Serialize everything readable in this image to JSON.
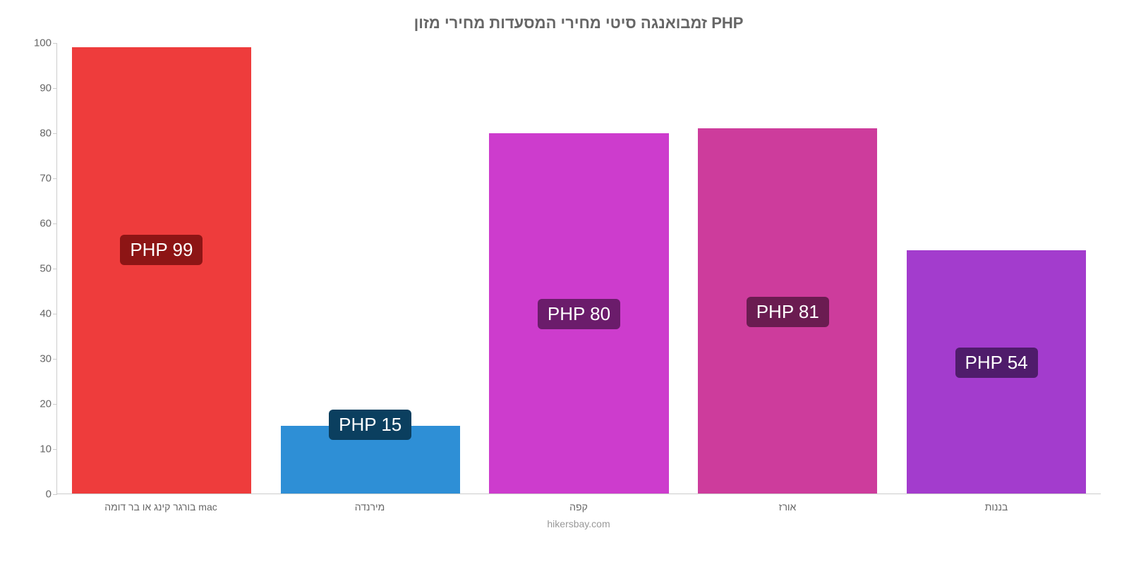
{
  "chart": {
    "type": "bar",
    "title": "זמבואנגה סיטי מחירי המסעדות מחירי מזון PHP",
    "title_color": "#666666",
    "title_fontsize": 22,
    "footer": "hikersbay.com",
    "footer_color": "#999999",
    "background_color": "#ffffff",
    "axis_color": "#cccccc",
    "label_color": "#666666",
    "label_fontsize": 15,
    "x_label_fontsize": 14,
    "ylim": [
      0,
      100
    ],
    "ytick_step": 10,
    "yticks": [
      0,
      10,
      20,
      30,
      40,
      50,
      60,
      70,
      80,
      90,
      100
    ],
    "bar_width_pct": 86,
    "badge_fontsize": 26,
    "badge_text_color": "#ffffff",
    "categories": [
      "בורגר קינג או בר דומה mac",
      "מירנדה",
      "קפה",
      "אורז",
      "בננות"
    ],
    "values": [
      99,
      15,
      80,
      81,
      54
    ],
    "value_labels": [
      "PHP 99",
      "PHP 15",
      "PHP 80",
      "PHP 81",
      "PHP 54"
    ],
    "bar_colors": [
      "#ee3c3c",
      "#2e8fd6",
      "#cd3ccd",
      "#cd3c9c",
      "#a33ccd"
    ],
    "badge_bg_colors": [
      "#8d1515",
      "#0b3f5f",
      "#6b1c6b",
      "#6b1c51",
      "#4f1c6b"
    ],
    "badge_positions": [
      "middle-upper",
      "top",
      "middle",
      "middle",
      "middle-lower"
    ]
  }
}
